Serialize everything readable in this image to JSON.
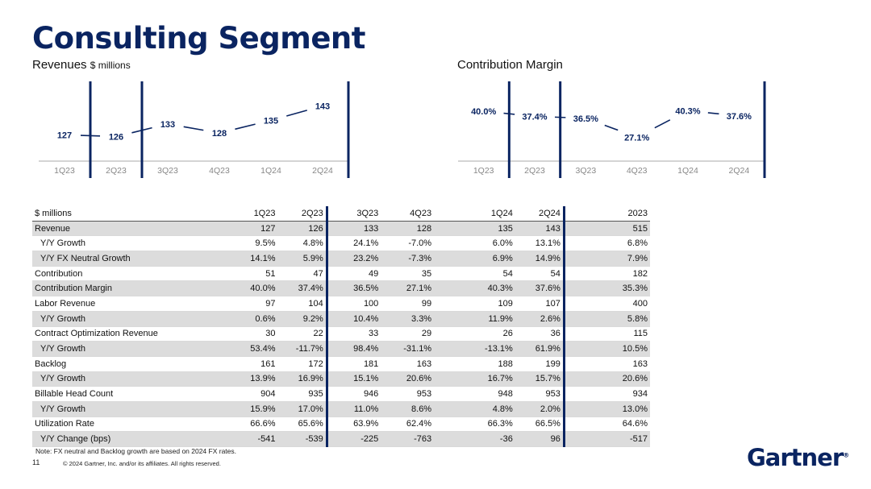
{
  "page": {
    "title": "Consulting Segment",
    "note": "Note: FX neutral and Backlog growth are based on 2024 FX rates.",
    "page_number": "11",
    "copyright": "© 2024 Gartner, Inc. and/or its affiliates. All rights reserved.",
    "logo": "Gartner",
    "logo_mark": "®"
  },
  "revenue_chart": {
    "title": "Revenues",
    "unit": "$ millions"
  },
  "margin_chart": {
    "title": "Contribution Margin"
  },
  "chart_data": [
    {
      "type": "line",
      "title": "Revenues $ millions",
      "categories": [
        "1Q23",
        "2Q23",
        "3Q23",
        "4Q23",
        "1Q24",
        "2Q24"
      ],
      "values": [
        127,
        126,
        133,
        128,
        135,
        143
      ],
      "labels": [
        "127",
        "126",
        "133",
        "128",
        "135",
        "143"
      ],
      "ylim": [
        120,
        145
      ]
    },
    {
      "type": "line",
      "title": "Contribution Margin",
      "categories": [
        "1Q23",
        "2Q23",
        "3Q23",
        "4Q23",
        "1Q24",
        "2Q24"
      ],
      "values": [
        40.0,
        37.4,
        36.5,
        27.1,
        40.3,
        37.6
      ],
      "labels": [
        "40.0%",
        "37.4%",
        "36.5%",
        "27.1%",
        "40.3%",
        "37.6%"
      ],
      "ylim": [
        24,
        42
      ]
    }
  ],
  "table": {
    "headers": [
      "$ millions",
      "1Q23",
      "2Q23",
      "3Q23",
      "4Q23",
      "1Q24",
      "2Q24",
      "2023"
    ],
    "rows": [
      {
        "label": "Revenue",
        "indent": false,
        "shade": true,
        "values": [
          "127",
          "126",
          "133",
          "128",
          "135",
          "143",
          "515"
        ]
      },
      {
        "label": "Y/Y Growth",
        "indent": true,
        "shade": false,
        "values": [
          "9.5%",
          "4.8%",
          "24.1%",
          "-7.0%",
          "6.0%",
          "13.1%",
          "6.8%"
        ]
      },
      {
        "label": "Y/Y FX Neutral Growth",
        "indent": true,
        "shade": true,
        "values": [
          "14.1%",
          "5.9%",
          "23.2%",
          "-7.3%",
          "6.9%",
          "14.9%",
          "7.9%"
        ]
      },
      {
        "label": "Contribution",
        "indent": false,
        "shade": false,
        "values": [
          "51",
          "47",
          "49",
          "35",
          "54",
          "54",
          "182"
        ]
      },
      {
        "label": "Contribution Margin",
        "indent": false,
        "shade": true,
        "values": [
          "40.0%",
          "37.4%",
          "36.5%",
          "27.1%",
          "40.3%",
          "37.6%",
          "35.3%"
        ]
      },
      {
        "label": "Labor Revenue",
        "indent": false,
        "shade": false,
        "values": [
          "97",
          "104",
          "100",
          "99",
          "109",
          "107",
          "400"
        ]
      },
      {
        "label": "Y/Y Growth",
        "indent": true,
        "shade": true,
        "values": [
          "0.6%",
          "9.2%",
          "10.4%",
          "3.3%",
          "11.9%",
          "2.6%",
          "5.8%"
        ]
      },
      {
        "label": "Contract Optimization Revenue",
        "indent": false,
        "shade": false,
        "values": [
          "30",
          "22",
          "33",
          "29",
          "26",
          "36",
          "115"
        ]
      },
      {
        "label": "Y/Y Growth",
        "indent": true,
        "shade": true,
        "values": [
          "53.4%",
          "-11.7%",
          "98.4%",
          "-31.1%",
          "-13.1%",
          "61.9%",
          "10.5%"
        ]
      },
      {
        "label": "Backlog",
        "indent": false,
        "shade": false,
        "values": [
          "161",
          "172",
          "181",
          "163",
          "188",
          "199",
          "163"
        ]
      },
      {
        "label": "Y/Y Growth",
        "indent": true,
        "shade": true,
        "values": [
          "13.9%",
          "16.9%",
          "15.1%",
          "20.6%",
          "16.7%",
          "15.7%",
          "20.6%"
        ]
      },
      {
        "label": "Billable Head Count",
        "indent": false,
        "shade": false,
        "values": [
          "904",
          "935",
          "946",
          "953",
          "948",
          "953",
          "934"
        ]
      },
      {
        "label": "Y/Y Growth",
        "indent": true,
        "shade": true,
        "values": [
          "15.9%",
          "17.0%",
          "11.0%",
          "8.6%",
          "4.8%",
          "2.0%",
          "13.0%"
        ]
      },
      {
        "label": "Utilization Rate",
        "indent": false,
        "shade": false,
        "values": [
          "66.6%",
          "65.6%",
          "63.9%",
          "62.4%",
          "66.3%",
          "66.5%",
          "64.6%"
        ]
      },
      {
        "label": "Y/Y Change (bps)",
        "indent": true,
        "shade": true,
        "values": [
          "-541",
          "-539",
          "-225",
          "-763",
          "-36",
          "96",
          "-517"
        ]
      }
    ]
  },
  "colors": {
    "navy": "#0a2461",
    "shade": "#dcdcdc",
    "axis": "#999999"
  }
}
